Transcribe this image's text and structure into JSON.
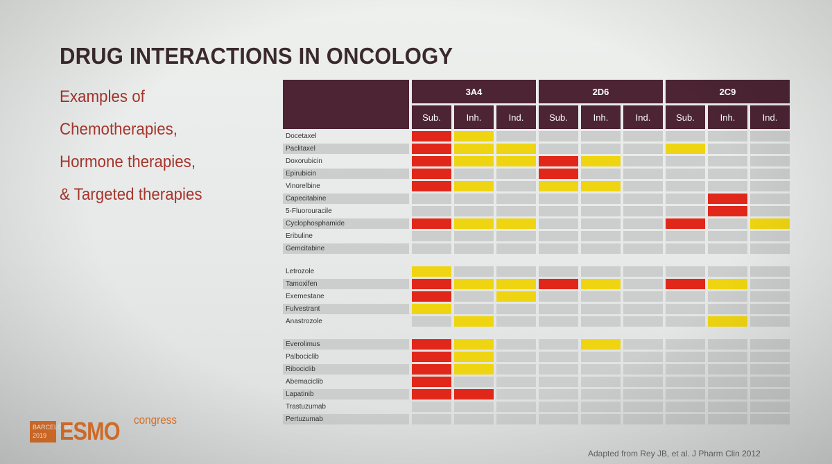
{
  "title": "DRUG INTERACTIONS IN ONCOLOGY",
  "subtitle_lines": [
    "Examples of",
    "Chemotherapies,",
    "Hormone therapies,",
    "& Targeted therapies"
  ],
  "table": {
    "groups": [
      "3A4",
      "2D6",
      "2C9"
    ],
    "subheaders": [
      "Sub.",
      "Inh.",
      "Ind.",
      "Sub.",
      "Inh.",
      "Ind.",
      "Sub.",
      "Inh.",
      "Ind."
    ],
    "sections": [
      {
        "rows": [
          {
            "drug": "Docetaxel",
            "cells": [
              "r",
              "y",
              "0",
              "0",
              "0",
              "0",
              "0",
              "0",
              "0"
            ]
          },
          {
            "drug": "Paclitaxel",
            "cells": [
              "r",
              "y",
              "y",
              "0",
              "0",
              "0",
              "y",
              "0",
              "0"
            ]
          },
          {
            "drug": "Doxorubicin",
            "cells": [
              "r",
              "y",
              "y",
              "r",
              "y",
              "0",
              "0",
              "0",
              "0"
            ]
          },
          {
            "drug": "Epirubicin",
            "cells": [
              "r",
              "0",
              "0",
              "r",
              "0",
              "0",
              "0",
              "0",
              "0"
            ]
          },
          {
            "drug": "Vinorelbine",
            "cells": [
              "r",
              "y",
              "0",
              "y",
              "y",
              "0",
              "0",
              "0",
              "0"
            ]
          },
          {
            "drug": "Capecitabine",
            "cells": [
              "0",
              "0",
              "0",
              "0",
              "0",
              "0",
              "0",
              "r",
              "0"
            ]
          },
          {
            "drug": "5-Fluorouracile",
            "cells": [
              "0",
              "0",
              "0",
              "0",
              "0",
              "0",
              "0",
              "r",
              "0"
            ]
          },
          {
            "drug": "Cyclophosphamide",
            "cells": [
              "r",
              "y",
              "y",
              "0",
              "0",
              "0",
              "r",
              "0",
              "y"
            ]
          },
          {
            "drug": "Eribuline",
            "cells": [
              "0",
              "0",
              "0",
              "0",
              "0",
              "0",
              "0",
              "0",
              "0"
            ]
          },
          {
            "drug": "Gemcitabine",
            "cells": [
              "0",
              "0",
              "0",
              "0",
              "0",
              "0",
              "0",
              "0",
              "0"
            ]
          }
        ]
      },
      {
        "rows": [
          {
            "drug": "Letrozole",
            "cells": [
              "y",
              "0",
              "0",
              "0",
              "0",
              "0",
              "0",
              "0",
              "0"
            ]
          },
          {
            "drug": "Tamoxifen",
            "cells": [
              "r",
              "y",
              "y",
              "r",
              "y",
              "0",
              "r",
              "y",
              "0"
            ]
          },
          {
            "drug": "Exemestane",
            "cells": [
              "r",
              "0",
              "y",
              "0",
              "0",
              "0",
              "0",
              "0",
              "0"
            ]
          },
          {
            "drug": "Fulvestrant",
            "cells": [
              "y",
              "0",
              "0",
              "0",
              "0",
              "0",
              "0",
              "0",
              "0"
            ]
          },
          {
            "drug": "Anastrozole",
            "cells": [
              "0",
              "y",
              "0",
              "0",
              "0",
              "0",
              "0",
              "y",
              "0"
            ]
          }
        ]
      },
      {
        "rows": [
          {
            "drug": "Everolimus",
            "cells": [
              "r",
              "y",
              "0",
              "0",
              "y",
              "0",
              "0",
              "0",
              "0"
            ]
          },
          {
            "drug": "Palbociclib",
            "cells": [
              "r",
              "y",
              "0",
              "0",
              "0",
              "0",
              "0",
              "0",
              "0"
            ]
          },
          {
            "drug": "Ribociclib",
            "cells": [
              "r",
              "y",
              "0",
              "0",
              "0",
              "0",
              "0",
              "0",
              "0"
            ]
          },
          {
            "drug": "Abemaciclib",
            "cells": [
              "r",
              "0",
              "0",
              "0",
              "0",
              "0",
              "0",
              "0",
              "0"
            ]
          },
          {
            "drug": "Lapatinib",
            "cells": [
              "r",
              "r",
              "0",
              "0",
              "0",
              "0",
              "0",
              "0",
              "0"
            ]
          },
          {
            "drug": "Trastuzumab",
            "cells": [
              "0",
              "0",
              "0",
              "0",
              "0",
              "0",
              "0",
              "0",
              "0"
            ]
          },
          {
            "drug": "Pertuzumab",
            "cells": [
              "0",
              "0",
              "0",
              "0",
              "0",
              "0",
              "0",
              "0",
              "0"
            ]
          }
        ]
      }
    ],
    "colors": {
      "header": "#4c2434",
      "strong": "#e0271a",
      "moderate": "#efd511",
      "none": "#cbcecd"
    }
  },
  "logo": {
    "box_line1": "BARCELONA",
    "box_line2": "2019",
    "brand": "ESMO",
    "suffix": "congress"
  },
  "source": "Adapted from Rey JB, et al. J Pharm Clin 2012"
}
